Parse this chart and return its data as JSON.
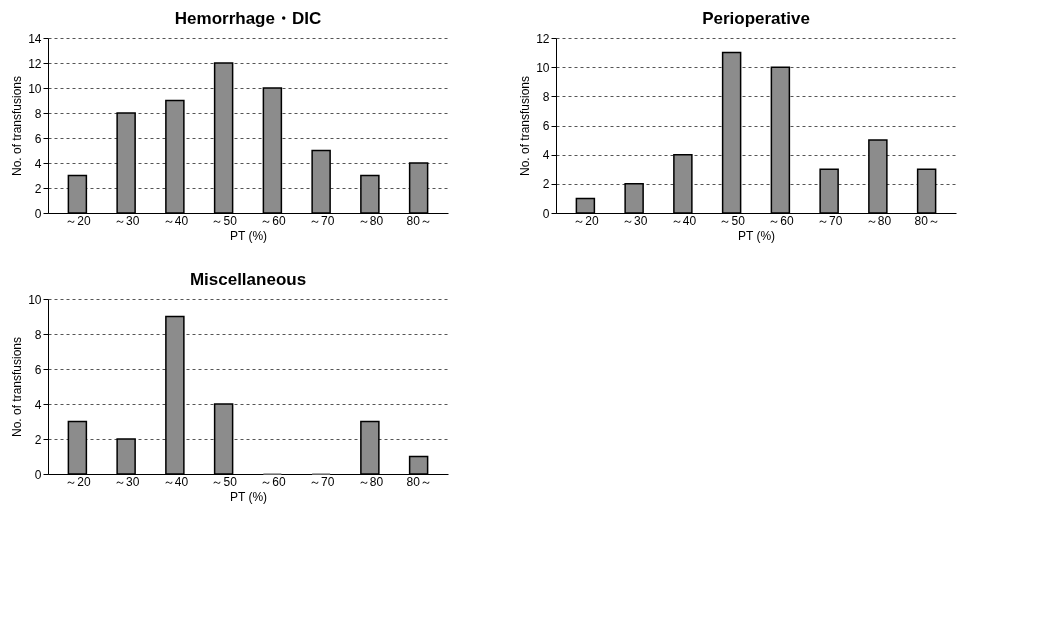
{
  "chart_data": [
    {
      "type": "bar",
      "title": "Hemorrhage・DIC",
      "xlabel": "PT (%)",
      "ylabel": "No. of transfusions",
      "categories": [
        "～20",
        "～30",
        "～40",
        "～50",
        "～60",
        "～70",
        "～80",
        "80～"
      ],
      "values": [
        3,
        8,
        9,
        12,
        10,
        5,
        3,
        4
      ],
      "color": "#8c8c8c",
      "ylim": [
        0,
        14
      ],
      "yticks": [
        0,
        2,
        4,
        6,
        8,
        10,
        12,
        14
      ],
      "grid": "y"
    },
    {
      "type": "bar",
      "title": "Perioperative",
      "xlabel": "PT (%)",
      "ylabel": "No. of transfusions",
      "categories": [
        "～20",
        "～30",
        "～40",
        "～50",
        "～60",
        "～70",
        "～80",
        "80～"
      ],
      "values": [
        1,
        2,
        4,
        11,
        10,
        3,
        5,
        3
      ],
      "color": "#8c8c8c",
      "ylim": [
        0,
        12
      ],
      "yticks": [
        0,
        2,
        4,
        6,
        8,
        10,
        12
      ],
      "grid": "y"
    },
    {
      "type": "bar",
      "title": "Miscellaneous",
      "xlabel": "PT (%)",
      "ylabel": "No. of transfusions",
      "categories": [
        "～20",
        "～30",
        "～40",
        "～50",
        "～60",
        "～70",
        "～80",
        "80～"
      ],
      "values": [
        3,
        2,
        9,
        4,
        0,
        0,
        3,
        1
      ],
      "color": "#8c8c8c",
      "ylim": [
        0,
        10
      ],
      "yticks": [
        0,
        2,
        4,
        6,
        8,
        10
      ],
      "grid": "y"
    }
  ]
}
